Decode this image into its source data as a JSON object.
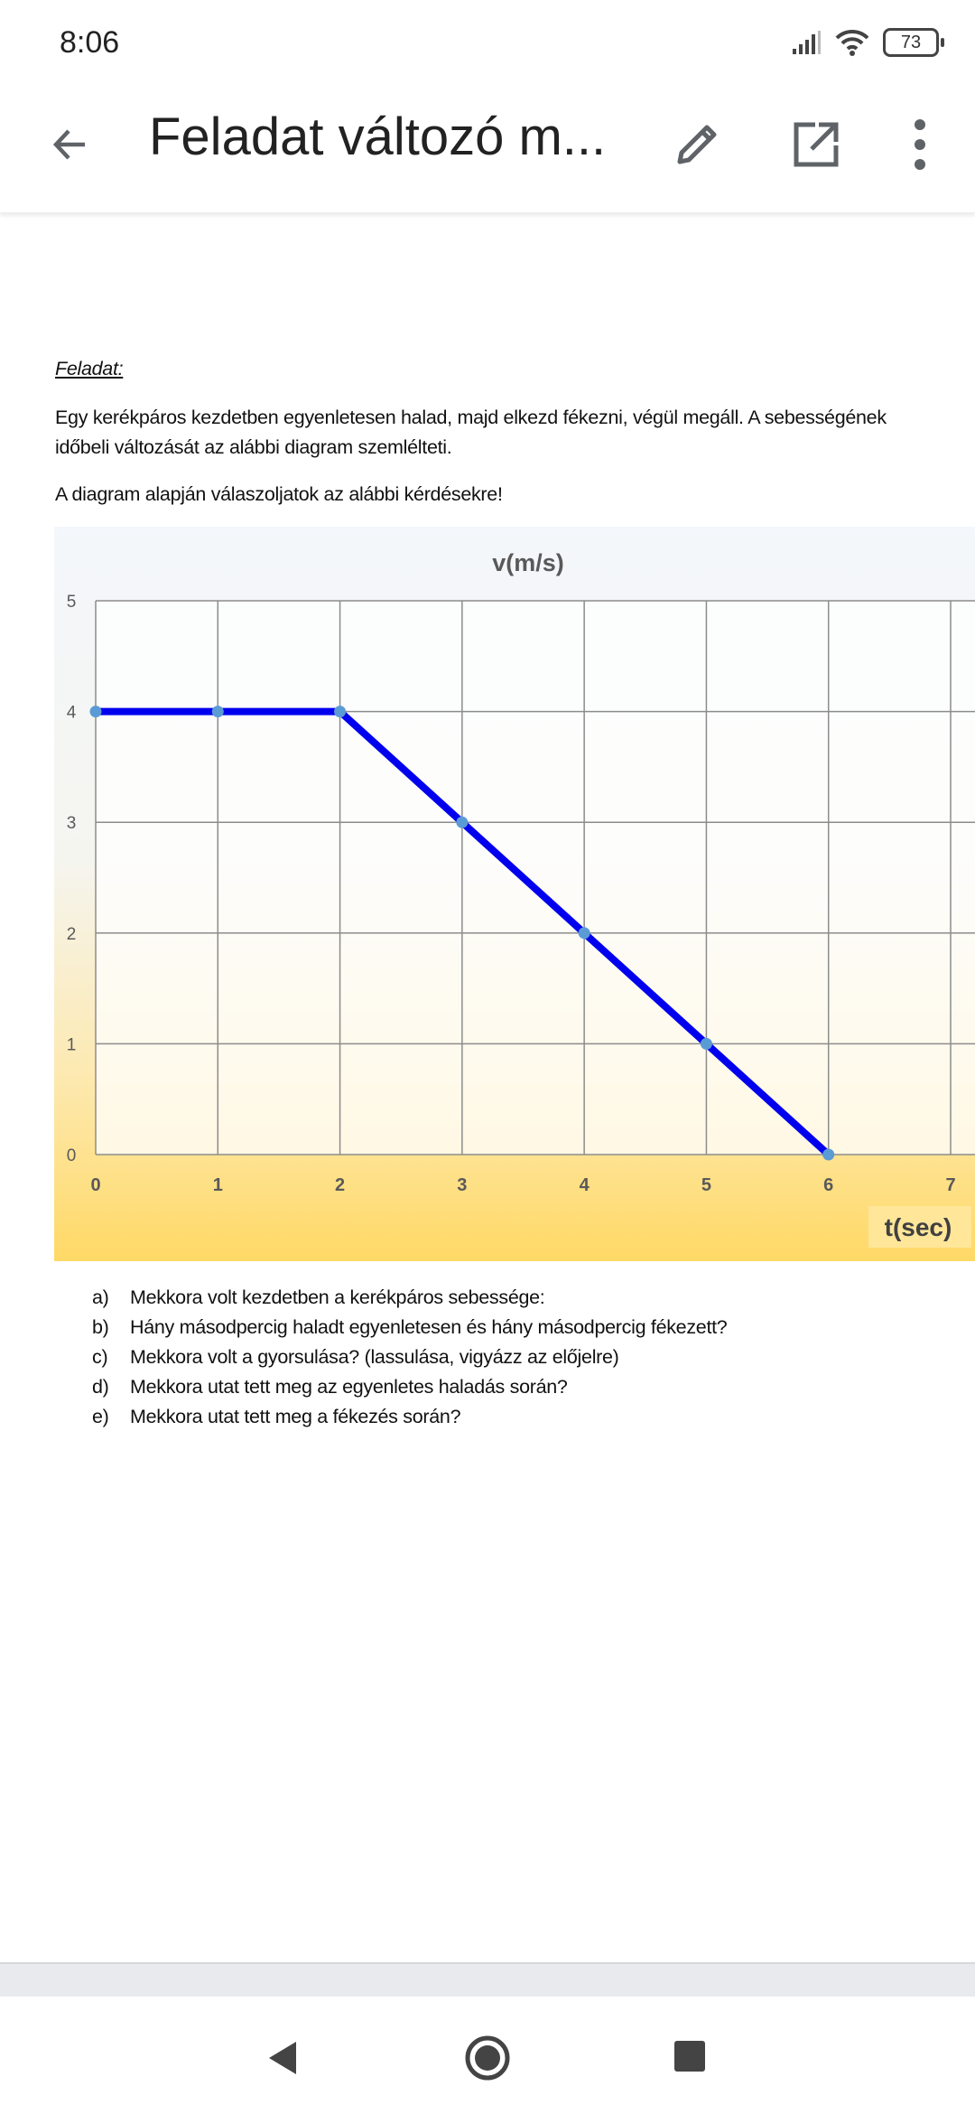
{
  "status_bar": {
    "time": "8:06",
    "battery": "73",
    "icons": [
      "signal-icon",
      "wifi-icon",
      "battery-icon"
    ]
  },
  "app_bar": {
    "title": "Feladat változó m...",
    "icons": [
      "back-arrow-icon",
      "pencil-icon",
      "open-external-icon",
      "more-vert-icon"
    ]
  },
  "document": {
    "heading": "Feladat:",
    "paragraph1_lines": [
      "Egy kerékpáros kezdetben egyenletesen halad, majd elkezd fékezni, végül megáll. A sebességének",
      "időbeli változását az alábbi diagram szemlélteti."
    ],
    "paragraph2": "A diagram alapján válaszoljatok az alábbi kérdésekre!",
    "questions": [
      {
        "letter": "a)",
        "text": "Mekkora volt kezdetben a kerékpáros sebessége:"
      },
      {
        "letter": "b)",
        "text": "Hány másodpercig haladt egyenletesen és hány másodpercig fékezett?"
      },
      {
        "letter": "c)",
        "text": "Mekkora volt a gyorsulása? (lassulása, vigyázz az előjelre)"
      },
      {
        "letter": "d)",
        "text": "Mekkora utat tett meg az egyenletes haladás során?"
      },
      {
        "letter": "e)",
        "text": "Mekkora utat tett meg a fékezés során?"
      }
    ]
  },
  "chart_data": {
    "type": "line",
    "title": "v(m/s)",
    "xlabel": "t(sec)",
    "ylabel": "",
    "x": [
      0,
      1,
      2,
      3,
      4,
      5,
      6
    ],
    "y": [
      4,
      4,
      4,
      3,
      2,
      1,
      0
    ],
    "xlim": [
      0,
      7
    ],
    "ylim": [
      0,
      5
    ],
    "xticks": [
      "0",
      "1",
      "2",
      "3",
      "4",
      "5",
      "6",
      "7"
    ],
    "yticks": [
      "0",
      "1",
      "2",
      "3",
      "4",
      "5"
    ],
    "grid": true,
    "line_color": "#0000ee",
    "marker_color": "#5b9bd5",
    "background": [
      "#f4f7fb",
      "#ffd966"
    ]
  },
  "nav_bar": {
    "icons": [
      "back-triangle-icon",
      "home-circle-icon",
      "recents-square-icon"
    ]
  }
}
